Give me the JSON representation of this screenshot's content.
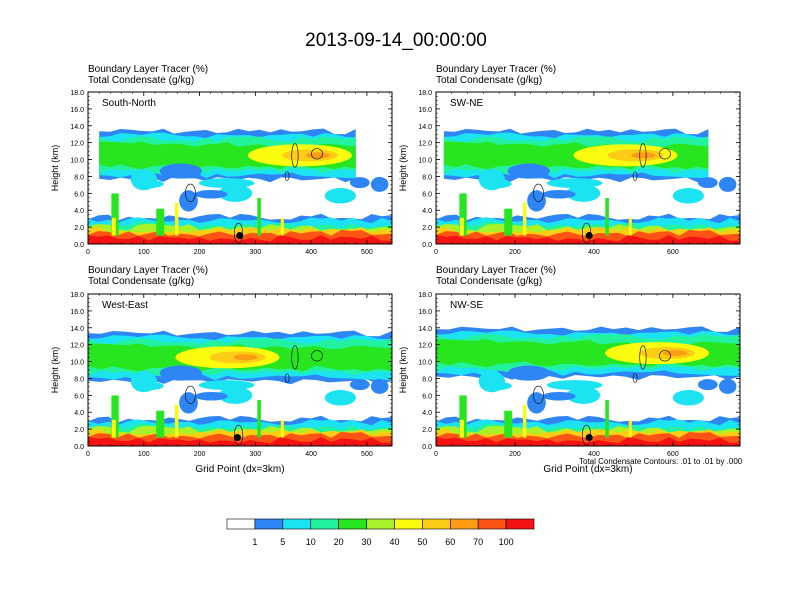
{
  "page": {
    "title": "2013-09-14_00:00:00",
    "footnote": "Total Condensate Contours: .01 to .01 by .000"
  },
  "colorbar": {
    "colors": [
      "#ffffff",
      "#2e86f4",
      "#1ce3f2",
      "#22f29e",
      "#27e51f",
      "#a8f22a",
      "#fbfb10",
      "#fdcd16",
      "#fc9c12",
      "#fb5414",
      "#f31313"
    ],
    "labels": [
      "1",
      "5",
      "10",
      "20",
      "30",
      "40",
      "50",
      "60",
      "70",
      "100"
    ]
  },
  "chart_data": [
    {
      "type": "heatmap",
      "panel_name": "South-North",
      "label_top": "Boundary Layer Tracer   (%)",
      "label_bottom": "Total Condensate   (g/kg)",
      "ylabel": "Height (km)",
      "xlabel": "",
      "xlim": [
        0,
        545
      ],
      "ylim": [
        0,
        18
      ],
      "xticks": [
        "0",
        "100",
        "200",
        "300",
        "400",
        "500"
      ],
      "yticks": [
        "0.0",
        "2.0",
        "4.0",
        "6.0",
        "8.0",
        "10.0",
        "12.0",
        "14.0",
        "16.0",
        "18.0"
      ],
      "marker": {
        "x": 272,
        "y": 1.0
      },
      "anvil": {
        "x0": 20,
        "x1": 480,
        "center": 380,
        "y": 10.5
      }
    },
    {
      "type": "heatmap",
      "panel_name": "SW-NE",
      "label_top": "Boundary Layer Tracer   (%)",
      "label_bottom": "Total Condensate   (g/kg)",
      "ylabel": "Height (km)",
      "xlabel": "",
      "xlim": [
        0,
        770
      ],
      "ylim": [
        0,
        18
      ],
      "xticks": [
        "0",
        "200",
        "400",
        "600"
      ],
      "yticks": [
        "0.0",
        "2.0",
        "4.0",
        "6.0",
        "8.0",
        "10.0",
        "12.0",
        "14.0",
        "16.0",
        "18.0"
      ],
      "marker": {
        "x": 388,
        "y": 1.0
      },
      "anvil": {
        "x0": 20,
        "x1": 690,
        "center": 480,
        "y": 10.5
      }
    },
    {
      "type": "heatmap",
      "panel_name": "West-East",
      "label_top": "Boundary Layer Tracer   (%)",
      "label_bottom": "Total Condensate   (g/kg)",
      "ylabel": "Height (km)",
      "xlabel": "Grid Point (dx=3km)",
      "xlim": [
        0,
        545
      ],
      "ylim": [
        0,
        18
      ],
      "xticks": [
        "0",
        "100",
        "200",
        "300",
        "400",
        "500"
      ],
      "yticks": [
        "0.0",
        "2.0",
        "4.0",
        "6.0",
        "8.0",
        "10.0",
        "12.0",
        "14.0",
        "16.0",
        "18.0"
      ],
      "marker": {
        "x": 268,
        "y": 1.0
      },
      "anvil": {
        "x0": 0,
        "x1": 545,
        "center": 250,
        "y": 10.5
      }
    },
    {
      "type": "heatmap",
      "panel_name": "NW-SE",
      "label_top": "Boundary Layer Tracer   (%)",
      "label_bottom": "Total Condensate   (g/kg)",
      "ylabel": "Height (km)",
      "xlabel": "Grid Point (dx=3km)",
      "xlim": [
        0,
        770
      ],
      "ylim": [
        0,
        18
      ],
      "xticks": [
        "0",
        "200",
        "400",
        "600"
      ],
      "yticks": [
        "0.0",
        "2.0",
        "4.0",
        "6.0",
        "8.0",
        "10.0",
        "12.0",
        "14.0",
        "16.0",
        "18.0"
      ],
      "marker": {
        "x": 388,
        "y": 1.0
      },
      "anvil": {
        "x0": 0,
        "x1": 770,
        "center": 560,
        "y": 11.0
      }
    }
  ]
}
